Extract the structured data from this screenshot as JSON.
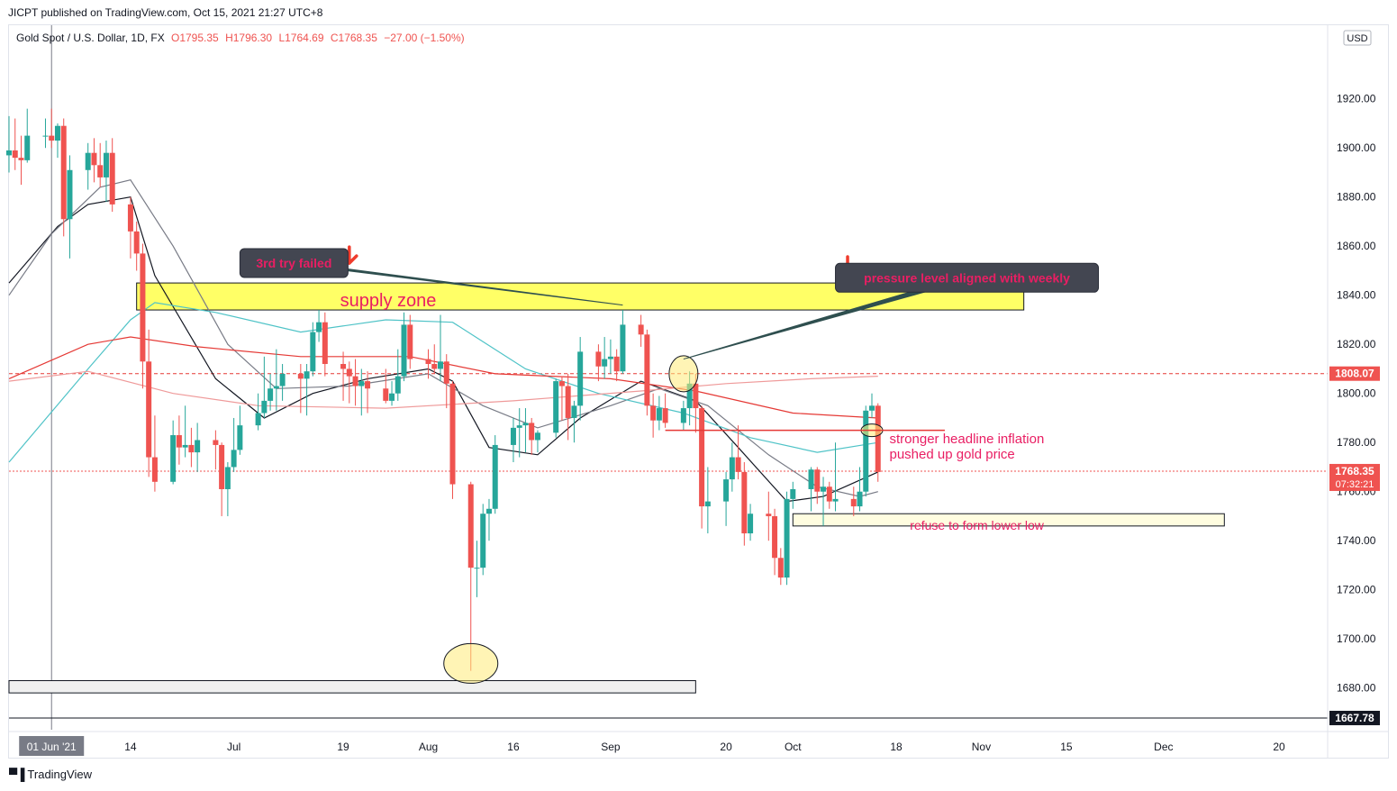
{
  "header": {
    "published_by": "JICPT published on TradingView.com, Oct 15, 2021 21:27 UTC+8"
  },
  "footer": {
    "brand": "TradingView",
    "logo_icon": "tradingview-logo-icon"
  },
  "legend": {
    "symbol": "Gold Spot / U.S. Dollar, 1D, FX",
    "open": "O1795.35",
    "high": "H1796.30",
    "low": "L1764.69",
    "close": "C1768.35",
    "change": "−27.00 (−1.50%)"
  },
  "colors": {
    "up": "#26a69a",
    "down": "#ef5350",
    "ma_black": "#131722",
    "ma_gray": "#787b86",
    "ma_teal": "#4fc3c7",
    "ma_red": "#e53935",
    "ma_pink": "#ef9a9a",
    "annotation_text": "#e91e63",
    "supply_zone": "#ffff66",
    "price_label": "#ef5350",
    "axis_text": "#131722"
  },
  "chart_data": {
    "type": "candlestick",
    "title": "Gold Spot / U.S. Dollar, 1D, FX",
    "currency": "USD",
    "ylim": [
      1663,
      1950
    ],
    "y_ticks": [
      1680,
      1700,
      1720,
      1740,
      1760,
      1780,
      1800,
      1820,
      1840,
      1860,
      1880,
      1900,
      1920
    ],
    "y_tick_labels": [
      "1680.00",
      "1700.00",
      "1720.00",
      "1740.00",
      "1760.00",
      "1780.00",
      "1800.00",
      "1820.00",
      "1840.00",
      "1860.00",
      "1880.00",
      "1900.00",
      "1920.00"
    ],
    "x_range": [
      "2021-05-25",
      "2021-12-28"
    ],
    "x_ticks": [
      {
        "date": "2021-06-01",
        "label": "01 Jun '21",
        "highlight": true
      },
      {
        "date": "2021-06-14",
        "label": "14"
      },
      {
        "date": "2021-07-01",
        "label": "Jul"
      },
      {
        "date": "2021-07-19",
        "label": "19"
      },
      {
        "date": "2021-08-02",
        "label": "Aug"
      },
      {
        "date": "2021-08-16",
        "label": "16"
      },
      {
        "date": "2021-09-01",
        "label": "Sep"
      },
      {
        "date": "2021-09-20",
        "label": "20"
      },
      {
        "date": "2021-10-01",
        "label": "Oct"
      },
      {
        "date": "2021-10-18",
        "label": "18"
      },
      {
        "date": "2021-11-01",
        "label": "Nov"
      },
      {
        "date": "2021-11-15",
        "label": "15"
      },
      {
        "date": "2021-12-01",
        "label": "Dec"
      },
      {
        "date": "2021-12-20",
        "label": "20"
      }
    ],
    "candles": [
      [
        "2021-05-25",
        1897,
        1913,
        1890,
        1899
      ],
      [
        "2021-05-26",
        1899,
        1912,
        1891,
        1896
      ],
      [
        "2021-05-27",
        1896,
        1905,
        1885,
        1895
      ],
      [
        "2021-05-28",
        1895,
        1916,
        1894,
        1905
      ],
      [
        "2021-05-31",
        1905,
        1912,
        1900,
        1905
      ],
      [
        "2021-06-01",
        1905,
        1916,
        1900,
        1903
      ],
      [
        "2021-06-02",
        1903,
        1910,
        1896,
        1909
      ],
      [
        "2021-06-03",
        1909,
        1912,
        1864,
        1871
      ],
      [
        "2021-06-04",
        1871,
        1897,
        1855,
        1891
      ],
      [
        "2021-06-07",
        1891,
        1902,
        1883,
        1898
      ],
      [
        "2021-06-08",
        1898,
        1904,
        1886,
        1893
      ],
      [
        "2021-06-09",
        1893,
        1902,
        1884,
        1888
      ],
      [
        "2021-06-10",
        1888,
        1903,
        1878,
        1898
      ],
      [
        "2021-06-11",
        1898,
        1904,
        1874,
        1877
      ],
      [
        "2021-06-14",
        1877,
        1880,
        1855,
        1866
      ],
      [
        "2021-06-15",
        1866,
        1870,
        1850,
        1857
      ],
      [
        "2021-06-16",
        1857,
        1861,
        1802,
        1813
      ],
      [
        "2021-06-17",
        1813,
        1826,
        1766,
        1774
      ],
      [
        "2021-06-18",
        1774,
        1791,
        1760,
        1764
      ],
      [
        "2021-06-21",
        1764,
        1789,
        1763,
        1783
      ],
      [
        "2021-06-22",
        1783,
        1791,
        1771,
        1778
      ],
      [
        "2021-06-23",
        1778,
        1795,
        1774,
        1779
      ],
      [
        "2021-06-24",
        1779,
        1786,
        1770,
        1776
      ],
      [
        "2021-06-25",
        1776,
        1788,
        1768,
        1781
      ],
      [
        "2021-06-28",
        1781,
        1785,
        1769,
        1779
      ],
      [
        "2021-06-29",
        1779,
        1780,
        1750,
        1761
      ],
      [
        "2021-06-30",
        1761,
        1772,
        1750,
        1770
      ],
      [
        "2021-07-01",
        1770,
        1790,
        1768,
        1777
      ],
      [
        "2021-07-02",
        1777,
        1795,
        1775,
        1787
      ],
      [
        "2021-07-05",
        1787,
        1800,
        1785,
        1792
      ],
      [
        "2021-07-06",
        1792,
        1815,
        1790,
        1797
      ],
      [
        "2021-07-07",
        1797,
        1808,
        1793,
        1802
      ],
      [
        "2021-07-08",
        1802,
        1818,
        1793,
        1803
      ],
      [
        "2021-07-09",
        1803,
        1812,
        1797,
        1808
      ],
      [
        "2021-07-12",
        1808,
        1812,
        1792,
        1806
      ],
      [
        "2021-07-13",
        1806,
        1812,
        1791,
        1809
      ],
      [
        "2021-07-14",
        1809,
        1829,
        1807,
        1825
      ],
      [
        "2021-07-15",
        1825,
        1834,
        1821,
        1829
      ],
      [
        "2021-07-16",
        1829,
        1833,
        1807,
        1812
      ],
      [
        "2021-07-19",
        1812,
        1817,
        1797,
        1810
      ],
      [
        "2021-07-20",
        1810,
        1813,
        1796,
        1807
      ],
      [
        "2021-07-21",
        1807,
        1814,
        1795,
        1803
      ],
      [
        "2021-07-22",
        1803,
        1810,
        1791,
        1805
      ],
      [
        "2021-07-23",
        1805,
        1809,
        1792,
        1802
      ],
      [
        "2021-07-26",
        1802,
        1810,
        1796,
        1797
      ],
      [
        "2021-07-27",
        1797,
        1805,
        1795,
        1800
      ],
      [
        "2021-07-28",
        1800,
        1818,
        1797,
        1807
      ],
      [
        "2021-07-29",
        1807,
        1833,
        1805,
        1828
      ],
      [
        "2021-07-30",
        1828,
        1832,
        1810,
        1814
      ],
      [
        "2021-08-02",
        1814,
        1818,
        1806,
        1812
      ],
      [
        "2021-08-03",
        1812,
        1820,
        1808,
        1810
      ],
      [
        "2021-08-04",
        1810,
        1832,
        1805,
        1813
      ],
      [
        "2021-08-05",
        1813,
        1816,
        1794,
        1804
      ],
      [
        "2021-08-06",
        1804,
        1805,
        1757,
        1763
      ],
      [
        "2021-08-09",
        1763,
        1764,
        1687,
        1729
      ],
      [
        "2021-08-10",
        1729,
        1740,
        1717,
        1729
      ],
      [
        "2021-08-11",
        1729,
        1755,
        1726,
        1751
      ],
      [
        "2021-08-12",
        1751,
        1757,
        1740,
        1753
      ],
      [
        "2021-08-13",
        1753,
        1783,
        1751,
        1779
      ],
      [
        "2021-08-16",
        1779,
        1790,
        1772,
        1786
      ],
      [
        "2021-08-17",
        1786,
        1794,
        1774,
        1787
      ],
      [
        "2021-08-18",
        1787,
        1794,
        1776,
        1788
      ],
      [
        "2021-08-19",
        1788,
        1790,
        1775,
        1781
      ],
      [
        "2021-08-20",
        1781,
        1785,
        1776,
        1784
      ],
      [
        "2021-08-23",
        1784,
        1806,
        1782,
        1805
      ],
      [
        "2021-08-24",
        1805,
        1807,
        1789,
        1803
      ],
      [
        "2021-08-25",
        1803,
        1808,
        1781,
        1790
      ],
      [
        "2021-08-26",
        1790,
        1797,
        1780,
        1795
      ],
      [
        "2021-08-27",
        1795,
        1823,
        1789,
        1817
      ],
      [
        "2021-08-30",
        1817,
        1820,
        1805,
        1811
      ],
      [
        "2021-08-31",
        1811,
        1823,
        1806,
        1814
      ],
      [
        "2021-09-01",
        1814,
        1822,
        1808,
        1815
      ],
      [
        "2021-09-02",
        1815,
        1818,
        1805,
        1809
      ],
      [
        "2021-09-03",
        1809,
        1834,
        1808,
        1828
      ],
      [
        "2021-09-06",
        1828,
        1832,
        1819,
        1824
      ],
      [
        "2021-09-07",
        1824,
        1826,
        1791,
        1795
      ],
      [
        "2021-09-08",
        1795,
        1800,
        1782,
        1789
      ],
      [
        "2021-09-09",
        1789,
        1799,
        1785,
        1794
      ],
      [
        "2021-09-10",
        1794,
        1800,
        1786,
        1788
      ],
      [
        "2021-09-13",
        1788,
        1797,
        1785,
        1794
      ],
      [
        "2021-09-14",
        1794,
        1809,
        1787,
        1804
      ],
      [
        "2021-09-15",
        1804,
        1808,
        1784,
        1794
      ],
      [
        "2021-09-16",
        1794,
        1795,
        1745,
        1754
      ],
      [
        "2021-09-17",
        1754,
        1770,
        1743,
        1756
      ],
      [
        "2021-09-20",
        1756,
        1768,
        1746,
        1765
      ],
      [
        "2021-09-21",
        1765,
        1780,
        1760,
        1774
      ],
      [
        "2021-09-22",
        1774,
        1787,
        1765,
        1768
      ],
      [
        "2021-09-23",
        1768,
        1772,
        1738,
        1743
      ],
      [
        "2021-09-24",
        1743,
        1755,
        1740,
        1751
      ],
      [
        "2021-09-27",
        1751,
        1760,
        1740,
        1750
      ],
      [
        "2021-09-28",
        1750,
        1753,
        1726,
        1733
      ],
      [
        "2021-09-29",
        1733,
        1737,
        1722,
        1725
      ],
      [
        "2021-09-30",
        1725,
        1760,
        1722,
        1757
      ],
      [
        "2021-10-01",
        1757,
        1764,
        1753,
        1761
      ],
      [
        "2021-10-04",
        1761,
        1770,
        1752,
        1769
      ],
      [
        "2021-10-05",
        1769,
        1770,
        1755,
        1760
      ],
      [
        "2021-10-06",
        1760,
        1766,
        1746,
        1762
      ],
      [
        "2021-10-07",
        1762,
        1764,
        1753,
        1756
      ],
      [
        "2021-10-08",
        1756,
        1780,
        1752,
        1757
      ],
      [
        "2021-10-11",
        1757,
        1762,
        1750,
        1754
      ],
      [
        "2021-10-12",
        1754,
        1770,
        1752,
        1760
      ],
      [
        "2021-10-13",
        1760,
        1795,
        1758,
        1793
      ],
      [
        "2021-10-14",
        1793,
        1800,
        1790,
        1795
      ],
      [
        "2021-10-15",
        1795,
        1796,
        1764,
        1768
      ]
    ],
    "moving_averages": [
      {
        "color": "#131722",
        "points": [
          [
            "2021-05-25",
            1845
          ],
          [
            "2021-06-02",
            1868
          ],
          [
            "2021-06-07",
            1877
          ],
          [
            "2021-06-14",
            1880
          ],
          [
            "2021-06-18",
            1848
          ],
          [
            "2021-06-28",
            1806
          ],
          [
            "2021-07-06",
            1790
          ],
          [
            "2021-07-14",
            1800
          ],
          [
            "2021-07-23",
            1806
          ],
          [
            "2021-08-02",
            1810
          ],
          [
            "2021-08-06",
            1805
          ],
          [
            "2021-08-12",
            1778
          ],
          [
            "2021-08-20",
            1775
          ],
          [
            "2021-08-27",
            1790
          ],
          [
            "2021-09-06",
            1805
          ],
          [
            "2021-09-15",
            1797
          ],
          [
            "2021-09-22",
            1778
          ],
          [
            "2021-09-30",
            1756
          ],
          [
            "2021-10-06",
            1758
          ],
          [
            "2021-10-15",
            1768
          ]
        ]
      },
      {
        "color": "#787b86",
        "points": [
          [
            "2021-05-25",
            1840
          ],
          [
            "2021-06-01",
            1865
          ],
          [
            "2021-06-09",
            1884
          ],
          [
            "2021-06-14",
            1887
          ],
          [
            "2021-06-21",
            1860
          ],
          [
            "2021-06-30",
            1820
          ],
          [
            "2021-07-08",
            1802
          ],
          [
            "2021-07-20",
            1803
          ],
          [
            "2021-08-02",
            1808
          ],
          [
            "2021-08-11",
            1795
          ],
          [
            "2021-08-20",
            1786
          ],
          [
            "2021-09-01",
            1795
          ],
          [
            "2021-09-09",
            1802
          ],
          [
            "2021-09-17",
            1795
          ],
          [
            "2021-09-27",
            1775
          ],
          [
            "2021-10-05",
            1762
          ],
          [
            "2021-10-12",
            1758
          ],
          [
            "2021-10-15",
            1760
          ]
        ]
      },
      {
        "color": "#4fc3c7",
        "points": [
          [
            "2021-05-25",
            1772
          ],
          [
            "2021-06-07",
            1810
          ],
          [
            "2021-06-14",
            1830
          ],
          [
            "2021-06-18",
            1837
          ],
          [
            "2021-06-28",
            1833
          ],
          [
            "2021-07-12",
            1825
          ],
          [
            "2021-07-26",
            1830
          ],
          [
            "2021-08-06",
            1829
          ],
          [
            "2021-08-18",
            1810
          ],
          [
            "2021-08-30",
            1800
          ],
          [
            "2021-09-13",
            1792
          ],
          [
            "2021-09-24",
            1782
          ],
          [
            "2021-10-05",
            1776
          ],
          [
            "2021-10-15",
            1780
          ]
        ]
      },
      {
        "color": "#e53935",
        "points": [
          [
            "2021-05-25",
            1806
          ],
          [
            "2021-06-07",
            1820
          ],
          [
            "2021-06-14",
            1823
          ],
          [
            "2021-06-25",
            1819
          ],
          [
            "2021-07-12",
            1815
          ],
          [
            "2021-07-30",
            1815
          ],
          [
            "2021-08-13",
            1808
          ],
          [
            "2021-09-01",
            1806
          ],
          [
            "2021-09-15",
            1801
          ],
          [
            "2021-10-01",
            1792
          ],
          [
            "2021-10-15",
            1790
          ]
        ]
      },
      {
        "color": "#ef9a9a",
        "points": [
          [
            "2021-05-25",
            1805
          ],
          [
            "2021-06-07",
            1809
          ],
          [
            "2021-06-21",
            1800
          ],
          [
            "2021-07-05",
            1795
          ],
          [
            "2021-07-26",
            1794
          ],
          [
            "2021-08-16",
            1797
          ],
          [
            "2021-09-06",
            1801
          ],
          [
            "2021-09-20",
            1804
          ],
          [
            "2021-10-04",
            1806
          ],
          [
            "2021-10-15",
            1807
          ]
        ]
      }
    ],
    "horizontal_lines": [
      {
        "price": 1808.07,
        "label": "1808.07",
        "style": "dashed",
        "color": "#e53935"
      },
      {
        "price": 1768.35,
        "label": "1768.35",
        "sublabel": "07:32:21",
        "style": "dotted",
        "color": "#ef5350"
      },
      {
        "price": 1667.78,
        "label": "1667.78",
        "style": "solid",
        "color": "#131722"
      }
    ],
    "annotations": {
      "supply_zone": {
        "text": "supply zone",
        "from": "2021-06-15",
        "to": "2021-11-08",
        "top": 1845,
        "bottom": 1834
      },
      "lower_box": {
        "from": "2021-05-25",
        "to": "2021-09-15",
        "top": 1683,
        "bottom": 1678
      },
      "refuse_box": {
        "text": "refuse to form lower low",
        "from": "2021-10-01",
        "to": "2021-12-11",
        "top": 1751,
        "bottom": 1746
      },
      "callout_third_try": {
        "text": "3rd try failed",
        "box_date": "2021-07-02",
        "box_price": 1859,
        "target_date": "2021-09-03",
        "target_price": 1836
      },
      "callout_pressure": {
        "text": "pressure level aligned with weekly",
        "box_date": "2021-10-08",
        "box_price": 1853,
        "target_date": "2021-09-13",
        "target_price": 1814
      },
      "inflation_note": {
        "text_line1": "stronger headline inflation",
        "text_line2": "pushed up gold price",
        "date": "2021-10-16",
        "price": 1780
      },
      "pressure_line": {
        "from": "2021-09-10",
        "to": "2021-10-26",
        "price": 1785
      },
      "arrows": [
        {
          "date": "2021-07-20",
          "price": 1856
        },
        {
          "date": "2021-10-10",
          "price": 1852
        }
      ],
      "ellipses": [
        {
          "date": "2021-08-09",
          "price": 1690,
          "rx": 30,
          "ry": 22
        },
        {
          "date": "2021-09-13",
          "price": 1808,
          "rx": 16,
          "ry": 20
        },
        {
          "date": "2021-10-14",
          "price": 1785,
          "rx": 12,
          "ry": 7
        }
      ]
    }
  }
}
